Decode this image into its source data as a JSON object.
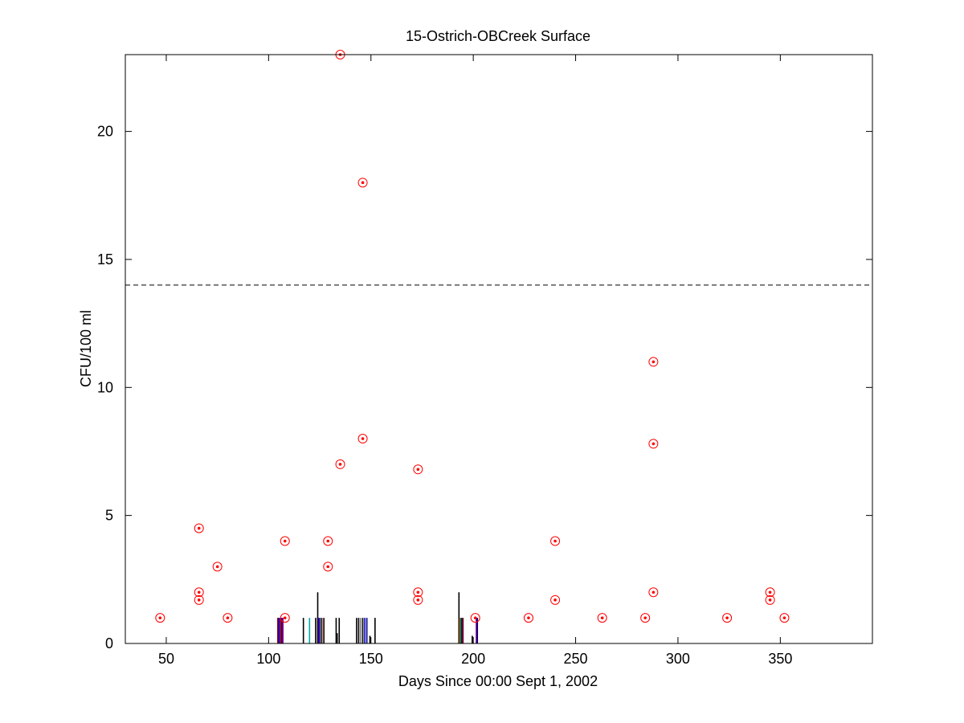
{
  "chart_data": {
    "type": "scatter",
    "title": "15-Ostrich-OBCreek Surface",
    "xlabel": "Days Since 00:00 Sept 1, 2002",
    "ylabel": "CFU/100 ml",
    "xlim": [
      30,
      395
    ],
    "ylim": [
      0,
      23
    ],
    "xticks": [
      50,
      100,
      150,
      200,
      250,
      300,
      350
    ],
    "yticks": [
      0,
      5,
      10,
      15,
      20
    ],
    "grid": false,
    "legend": "none",
    "reference_line": {
      "y": 14,
      "style": "dashed",
      "color": "#000000"
    },
    "series": [
      {
        "marker": "circle-dot",
        "color": "#ff0000",
        "points": [
          {
            "x": 47,
            "y": 1
          },
          {
            "x": 66,
            "y": 4.5
          },
          {
            "x": 66,
            "y": 2
          },
          {
            "x": 66,
            "y": 1.7
          },
          {
            "x": 75,
            "y": 3
          },
          {
            "x": 80,
            "y": 1
          },
          {
            "x": 108,
            "y": 4
          },
          {
            "x": 108,
            "y": 1
          },
          {
            "x": 129,
            "y": 4
          },
          {
            "x": 129,
            "y": 3
          },
          {
            "x": 135,
            "y": 23
          },
          {
            "x": 135,
            "y": 7
          },
          {
            "x": 146,
            "y": 18
          },
          {
            "x": 146,
            "y": 8
          },
          {
            "x": 173,
            "y": 6.8
          },
          {
            "x": 173,
            "y": 2
          },
          {
            "x": 173,
            "y": 1.7
          },
          {
            "x": 201,
            "y": 1
          },
          {
            "x": 227,
            "y": 1
          },
          {
            "x": 240,
            "y": 4
          },
          {
            "x": 240,
            "y": 1.7
          },
          {
            "x": 263,
            "y": 1
          },
          {
            "x": 284,
            "y": 1
          },
          {
            "x": 288,
            "y": 11
          },
          {
            "x": 288,
            "y": 7.8
          },
          {
            "x": 288,
            "y": 2
          },
          {
            "x": 324,
            "y": 1
          },
          {
            "x": 345,
            "y": 2
          },
          {
            "x": 345,
            "y": 1.7
          },
          {
            "x": 352,
            "y": 1
          }
        ]
      }
    ],
    "bars": [
      {
        "x": 104.5,
        "y": 1,
        "color": "#8b0000"
      },
      {
        "x": 105,
        "y": 1,
        "color": "#0000cd"
      },
      {
        "x": 105.5,
        "y": 1,
        "color": "#800080"
      },
      {
        "x": 106,
        "y": 1,
        "color": "#c00000"
      },
      {
        "x": 106.5,
        "y": 1,
        "color": "#000080"
      },
      {
        "x": 107,
        "y": 1,
        "color": "#8b008b"
      },
      {
        "x": 117,
        "y": 1,
        "color": "#000000"
      },
      {
        "x": 120,
        "y": 1,
        "color": "#00aaaa"
      },
      {
        "x": 123,
        "y": 1,
        "color": "#000000"
      },
      {
        "x": 124,
        "y": 2,
        "color": "#000000"
      },
      {
        "x": 124.5,
        "y": 1,
        "color": "#0000cd"
      },
      {
        "x": 125,
        "y": 1,
        "color": "#800080"
      },
      {
        "x": 125.5,
        "y": 1,
        "color": "#00aaaa"
      },
      {
        "x": 126,
        "y": 1,
        "color": "#8b0000"
      },
      {
        "x": 127,
        "y": 1,
        "color": "#000000"
      },
      {
        "x": 133,
        "y": 1,
        "color": "#000000"
      },
      {
        "x": 133.5,
        "y": 0.4,
        "color": "#000000"
      },
      {
        "x": 134.5,
        "y": 1,
        "color": "#000000"
      },
      {
        "x": 143,
        "y": 1,
        "color": "#000000"
      },
      {
        "x": 144,
        "y": 1,
        "color": "#000000"
      },
      {
        "x": 145,
        "y": 1,
        "color": "#808080"
      },
      {
        "x": 146,
        "y": 1,
        "color": "#000000"
      },
      {
        "x": 147,
        "y": 1,
        "color": "#0000cd"
      },
      {
        "x": 148,
        "y": 1,
        "color": "#000080"
      },
      {
        "x": 149.5,
        "y": 0.3,
        "color": "#000000"
      },
      {
        "x": 152,
        "y": 1,
        "color": "#000000"
      },
      {
        "x": 193,
        "y": 2,
        "color": "#000000"
      },
      {
        "x": 193.5,
        "y": 1,
        "color": "#b8860b"
      },
      {
        "x": 194,
        "y": 1,
        "color": "#006400"
      },
      {
        "x": 194.5,
        "y": 1,
        "color": "#0000cd"
      },
      {
        "x": 195,
        "y": 1,
        "color": "#8b0000"
      },
      {
        "x": 199.5,
        "y": 0.3,
        "color": "#000000"
      },
      {
        "x": 201.5,
        "y": 1,
        "color": "#800080"
      },
      {
        "x": 202,
        "y": 1,
        "color": "#000080"
      }
    ]
  }
}
